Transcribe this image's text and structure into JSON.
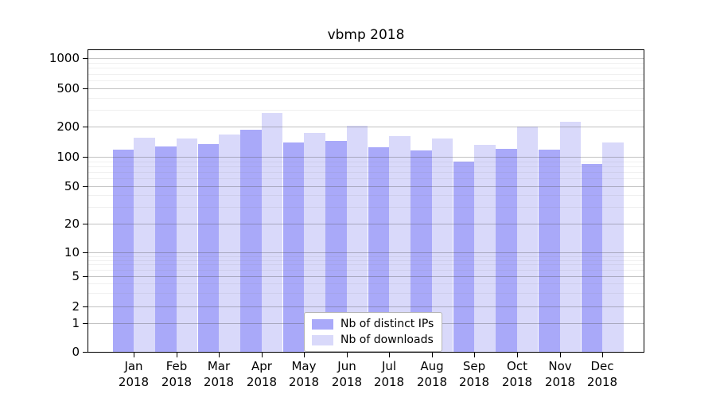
{
  "title": "vbmp 2018",
  "chart_data": {
    "type": "bar",
    "title": "vbmp 2018",
    "categories": [
      "Jan 2018",
      "Feb 2018",
      "Mar 2018",
      "Apr 2018",
      "May 2018",
      "Jun 2018",
      "Jul 2018",
      "Aug 2018",
      "Sep 2018",
      "Oct 2018",
      "Nov 2018",
      "Dec 2018"
    ],
    "x_tick_months": [
      "Jan",
      "Feb",
      "Mar",
      "Apr",
      "May",
      "Jun",
      "Jul",
      "Aug",
      "Sep",
      "Oct",
      "Nov",
      "Dec"
    ],
    "x_tick_year": "2018",
    "series": [
      {
        "name": "Nb of distinct IPs",
        "color": "#a9a9f9",
        "values": [
          118,
          127,
          135,
          187,
          139,
          143,
          125,
          115,
          90,
          121,
          118,
          85
        ]
      },
      {
        "name": "Nb of downloads",
        "color": "#d9d9fa",
        "values": [
          155,
          152,
          168,
          276,
          174,
          205,
          160,
          152,
          132,
          200,
          226,
          140
        ]
      }
    ],
    "xlabel": "",
    "ylabel": "",
    "y_scale": "log-with-zero",
    "y_tick_values": [
      1000,
      500,
      200,
      100,
      50,
      20,
      10,
      5,
      2,
      1,
      0
    ],
    "y_minor_gridline_values": [
      900,
      800,
      700,
      600,
      400,
      300,
      90,
      80,
      70,
      60,
      40,
      30,
      9,
      8,
      7,
      6,
      4,
      3
    ],
    "ylim": [
      0,
      1000
    ],
    "grid": "major+minor horizontal",
    "legend_position": "lower center"
  },
  "legend": {
    "items": [
      {
        "label": "Nb of distinct IPs",
        "color": "#a9a9f9"
      },
      {
        "label": "Nb of downloads",
        "color": "#d9d9fa"
      }
    ]
  },
  "colors": {
    "bar_distinct_ips": "#a9a9f9",
    "bar_downloads": "#d9d9fa",
    "spine": "#000000",
    "background": "#ffffff"
  }
}
